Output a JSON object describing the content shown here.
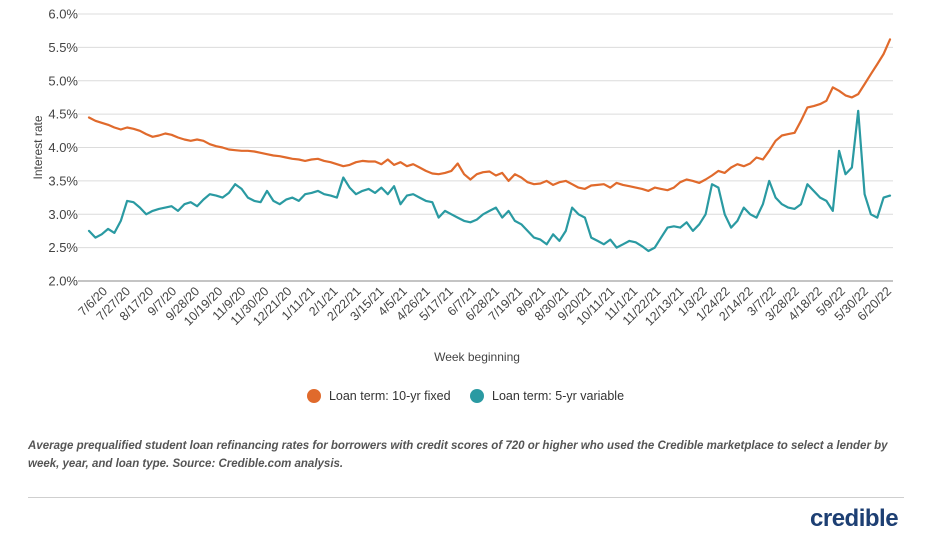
{
  "chart_data": {
    "type": "line",
    "xlabel": "Week beginning",
    "ylabel": "Interest rate",
    "ylim": [
      2.0,
      6.0
    ],
    "yticks": [
      "6.0%",
      "5.5%",
      "5.0%",
      "4.5%",
      "4.0%",
      "3.5%",
      "3.0%",
      "2.5%",
      "2.0%"
    ],
    "grid": true,
    "legend_position": "bottom",
    "x_tick_labels": [
      "7/6/20",
      "7/27/20",
      "8/17/20",
      "9/7/20",
      "9/28/20",
      "10/19/20",
      "11/9/20",
      "11/30/20",
      "12/21/20",
      "1/11/21",
      "2/1/21",
      "2/22/21",
      "3/15/21",
      "4/5/21",
      "4/26/21",
      "5/17/21",
      "6/7/21",
      "6/28/21",
      "7/19/21",
      "8/9/21",
      "8/30/21",
      "9/20/21",
      "10/11/21",
      "11/1/21",
      "11/22/21",
      "12/13/21",
      "1/3/22",
      "1/24/22",
      "2/14/22",
      "3/7/22",
      "3/28/22",
      "4/18/22",
      "5/9/22",
      "5/30/22",
      "6/20/22"
    ],
    "series": [
      {
        "name": "Loan term: 10-yr fixed",
        "color": "#e06a2c",
        "values": [
          4.45,
          4.4,
          4.37,
          4.34,
          4.3,
          4.27,
          4.3,
          4.28,
          4.25,
          4.2,
          4.16,
          4.18,
          4.21,
          4.19,
          4.15,
          4.12,
          4.1,
          4.12,
          4.1,
          4.05,
          4.02,
          4.0,
          3.97,
          3.96,
          3.95,
          3.95,
          3.94,
          3.92,
          3.9,
          3.88,
          3.87,
          3.85,
          3.83,
          3.82,
          3.8,
          3.82,
          3.83,
          3.8,
          3.78,
          3.75,
          3.72,
          3.74,
          3.78,
          3.8,
          3.79,
          3.79,
          3.75,
          3.82,
          3.74,
          3.78,
          3.72,
          3.75,
          3.7,
          3.65,
          3.61,
          3.6,
          3.62,
          3.65,
          3.76,
          3.6,
          3.52,
          3.6,
          3.63,
          3.64,
          3.58,
          3.62,
          3.5,
          3.6,
          3.55,
          3.48,
          3.45,
          3.46,
          3.5,
          3.44,
          3.48,
          3.5,
          3.45,
          3.4,
          3.38,
          3.43,
          3.44,
          3.45,
          3.4,
          3.47,
          3.44,
          3.42,
          3.4,
          3.38,
          3.35,
          3.4,
          3.38,
          3.36,
          3.4,
          3.48,
          3.52,
          3.5,
          3.47,
          3.52,
          3.58,
          3.65,
          3.62,
          3.7,
          3.75,
          3.72,
          3.76,
          3.85,
          3.82,
          3.95,
          4.1,
          4.18,
          4.2,
          4.22,
          4.4,
          4.6,
          4.62,
          4.65,
          4.7,
          4.9,
          4.85,
          4.78,
          4.75,
          4.8,
          4.95,
          5.1,
          5.25,
          5.4,
          5.62
        ]
      },
      {
        "name": "Loan term: 5-yr variable",
        "color": "#2a9aa2",
        "values": [
          2.75,
          2.65,
          2.7,
          2.78,
          2.72,
          2.9,
          3.2,
          3.18,
          3.1,
          3.0,
          3.05,
          3.08,
          3.1,
          3.12,
          3.05,
          3.15,
          3.18,
          3.12,
          3.22,
          3.3,
          3.28,
          3.25,
          3.32,
          3.45,
          3.38,
          3.25,
          3.2,
          3.18,
          3.35,
          3.2,
          3.15,
          3.22,
          3.25,
          3.2,
          3.3,
          3.32,
          3.35,
          3.3,
          3.28,
          3.25,
          3.55,
          3.4,
          3.3,
          3.35,
          3.38,
          3.32,
          3.4,
          3.3,
          3.42,
          3.15,
          3.28,
          3.3,
          3.25,
          3.2,
          3.18,
          2.95,
          3.05,
          3.0,
          2.95,
          2.9,
          2.88,
          2.92,
          3.0,
          3.05,
          3.1,
          2.95,
          3.05,
          2.9,
          2.85,
          2.75,
          2.65,
          2.62,
          2.55,
          2.7,
          2.6,
          2.75,
          3.1,
          3.0,
          2.95,
          2.65,
          2.6,
          2.55,
          2.62,
          2.5,
          2.55,
          2.6,
          2.58,
          2.52,
          2.45,
          2.5,
          2.65,
          2.8,
          2.82,
          2.8,
          2.88,
          2.75,
          2.85,
          3.0,
          3.45,
          3.4,
          3.0,
          2.8,
          2.9,
          3.1,
          3.0,
          2.95,
          3.15,
          3.5,
          3.25,
          3.15,
          3.1,
          3.08,
          3.15,
          3.45,
          3.35,
          3.25,
          3.2,
          3.05,
          3.95,
          3.6,
          3.7,
          4.55,
          3.3,
          3.0,
          2.95,
          3.25,
          3.28
        ]
      }
    ]
  },
  "legend": [
    {
      "label": "Loan term: 10-yr fixed",
      "color": "#e06a2c"
    },
    {
      "label": "Loan term: 5-yr variable",
      "color": "#2a9aa2"
    }
  ],
  "caption": "Average prequalified student loan refinancing rates for borrowers with credit scores of 720 or higher who used the Credible marketplace to select a lender by week, year, and loan type. Source: Credible.com analysis.",
  "logo_text": "credible"
}
